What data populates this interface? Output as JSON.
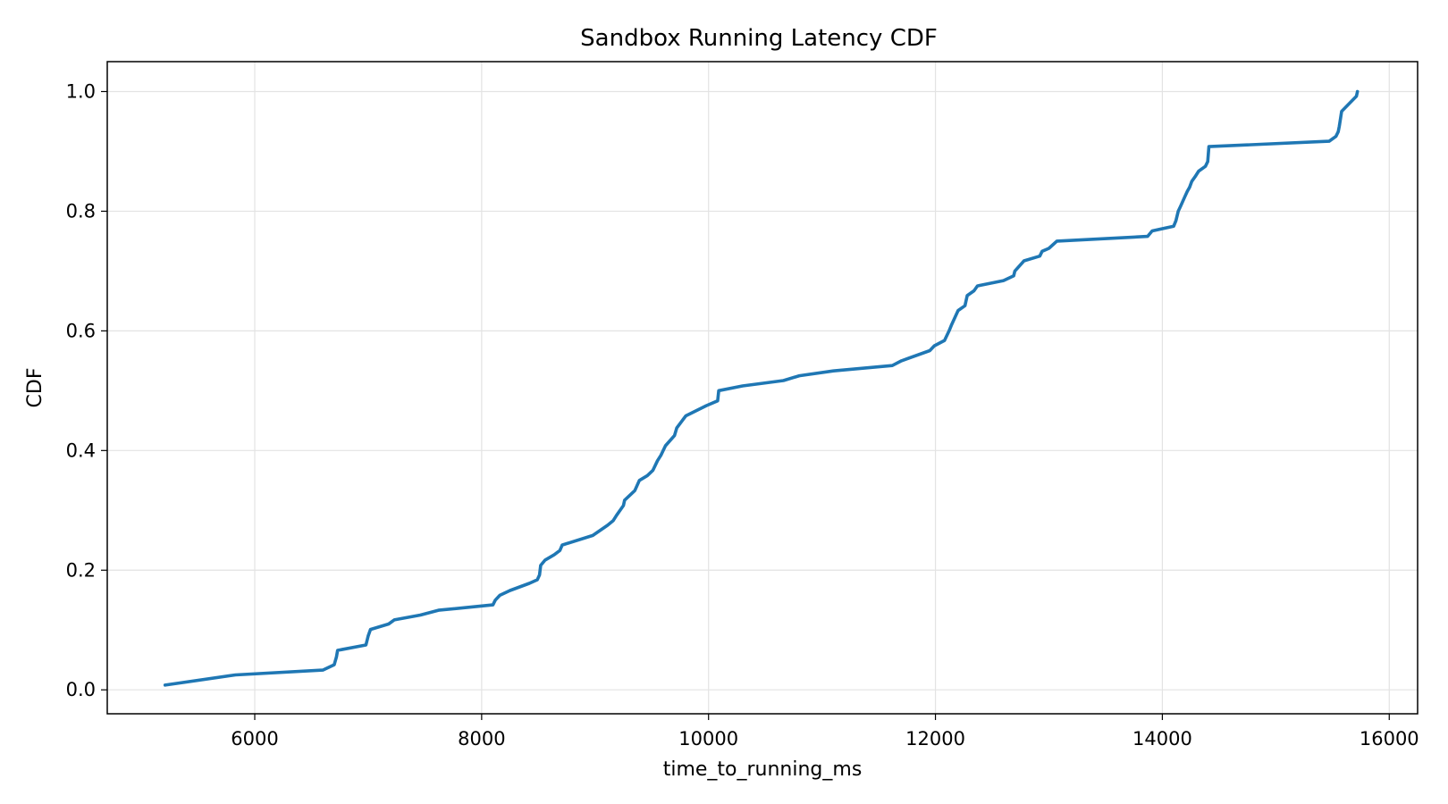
{
  "chart_data": {
    "type": "line",
    "title": "Sandbox Running Latency CDF",
    "xlabel": "time_to_running_ms",
    "ylabel": "CDF",
    "xlim": [
      4700,
      16250
    ],
    "ylim": [
      -0.04,
      1.05
    ],
    "xticks": [
      6000,
      8000,
      10000,
      12000,
      14000,
      16000
    ],
    "yticks": [
      0.0,
      0.2,
      0.4,
      0.6,
      0.8,
      1.0
    ],
    "xtick_labels": [
      "6000",
      "8000",
      "10000",
      "12000",
      "14000",
      "16000"
    ],
    "ytick_labels": [
      "0.0",
      "0.2",
      "0.4",
      "0.6",
      "0.8",
      "1.0"
    ],
    "grid": true,
    "line_color": "#1f77b4",
    "series": [
      {
        "x": [
          5210,
          5830,
          6600,
          6700,
          6720,
          6730,
          6980,
          7000,
          7020,
          7180,
          7230,
          7460,
          7620,
          8100,
          8120,
          8160,
          8250,
          8420,
          8490,
          8510,
          8520,
          8560,
          8640,
          8690,
          8710,
          8980,
          9110,
          9160,
          9190,
          9250,
          9260,
          9350,
          9390,
          9460,
          9510,
          9550,
          9580,
          9620,
          9700,
          9720,
          9800,
          9980,
          10080,
          10090,
          10300,
          10660,
          10800,
          11100,
          11620,
          11700,
          11950,
          11990,
          12080,
          12120,
          12140,
          12200,
          12260,
          12280,
          12340,
          12370,
          12390,
          12600,
          12690,
          12700,
          12780,
          12920,
          12940,
          13000,
          13070,
          13870,
          13910,
          14100,
          14120,
          14140,
          14160,
          14200,
          14220,
          14240,
          14260,
          14290,
          14320,
          14380,
          14400,
          14410,
          15470,
          15530,
          15550,
          15560,
          15580,
          15710,
          15720
        ],
        "y": [
          0.008,
          0.025,
          0.033,
          0.042,
          0.055,
          0.066,
          0.075,
          0.09,
          0.101,
          0.11,
          0.117,
          0.125,
          0.133,
          0.142,
          0.15,
          0.158,
          0.166,
          0.178,
          0.184,
          0.192,
          0.208,
          0.217,
          0.226,
          0.233,
          0.242,
          0.258,
          0.275,
          0.283,
          0.292,
          0.308,
          0.317,
          0.333,
          0.35,
          0.358,
          0.367,
          0.383,
          0.392,
          0.408,
          0.425,
          0.438,
          0.458,
          0.475,
          0.483,
          0.5,
          0.508,
          0.517,
          0.525,
          0.533,
          0.542,
          0.55,
          0.567,
          0.575,
          0.584,
          0.6,
          0.609,
          0.634,
          0.642,
          0.659,
          0.667,
          0.675,
          0.676,
          0.684,
          0.692,
          0.7,
          0.717,
          0.725,
          0.733,
          0.738,
          0.75,
          0.758,
          0.767,
          0.775,
          0.784,
          0.8,
          0.808,
          0.825,
          0.833,
          0.84,
          0.85,
          0.858,
          0.867,
          0.875,
          0.883,
          0.908,
          0.917,
          0.925,
          0.933,
          0.942,
          0.967,
          0.992,
          1.0
        ]
      }
    ]
  }
}
